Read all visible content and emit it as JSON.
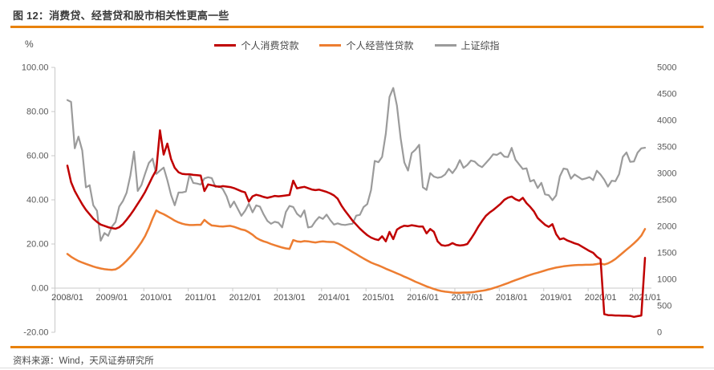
{
  "page": {
    "title": "图 12：消费贷、经营贷和股市相关性更高一些",
    "source": "资料来源：Wind，天风证券研究所"
  },
  "colors": {
    "accent_rule": "#e8820c",
    "consumer_loan": "#c00000",
    "business_loan": "#ed7d31",
    "sse_index": "#9b9b9b",
    "axis": "#c9c9c9"
  },
  "chart_data": {
    "type": "line",
    "title": "消费贷、经营贷和股市相关性更高一些",
    "unit_label": "%",
    "x_interval": "monthly",
    "x_start": "2008/01",
    "x_end": "2021/01",
    "x_tick_labels": [
      "2008/01",
      "2009/01",
      "2010/01",
      "2011/01",
      "2012/01",
      "2013/01",
      "2014/01",
      "2015/01",
      "2016/01",
      "2017/01",
      "2018/01",
      "2019/01",
      "2020/01",
      "2021/01"
    ],
    "left_axis": {
      "min": -20,
      "max": 100,
      "step": 20,
      "decimals": 2
    },
    "right_axis": {
      "min": 0,
      "max": 5000,
      "step": 500,
      "decimals": 0
    },
    "grid": false,
    "legend_position": "top",
    "series": [
      {
        "name": "个人消费贷款",
        "axis": "left",
        "color": "#c00000",
        "values": [
          55.5,
          48,
          44,
          41,
          38,
          35.5,
          33.5,
          31.5,
          30,
          28.8,
          28.2,
          27.6,
          27.2,
          26.9,
          27.6,
          29,
          31,
          33.2,
          35.6,
          38.2,
          40.8,
          43.6,
          47,
          50.5,
          53.5,
          71.5,
          60.5,
          65.5,
          58.5,
          54.5,
          52.5,
          51.8,
          51.6,
          51.6,
          51.3,
          51.2,
          51,
          44,
          47,
          46.6,
          46.2,
          45.9,
          46.2,
          46,
          45.8,
          45.3,
          44.6,
          43.9,
          43.4,
          39.2,
          41.6,
          42.3,
          41.9,
          41.3,
          40.9,
          41.3,
          41.8,
          41.6,
          41.8,
          42,
          42.2,
          48.7,
          45.2,
          45.6,
          45.9,
          45.3,
          44.7,
          44.4,
          44.6,
          44.1,
          43.6,
          42.9,
          42,
          40.5,
          37.5,
          35,
          32.8,
          30.6,
          28.8,
          27,
          25.4,
          24,
          22.9,
          22.2,
          21.8,
          23.5,
          21.2,
          25.5,
          22.2,
          26.5,
          27.6,
          28.3,
          28.1,
          28.5,
          28.2,
          27.9,
          27.9,
          24.8,
          26.8,
          25.5,
          21.2,
          19.5,
          19.2,
          19.5,
          20.4,
          19.6,
          19.3,
          19.5,
          20,
          22.4,
          25,
          27.9,
          30.4,
          32.7,
          34.2,
          35.4,
          36.8,
          38.2,
          40,
          41,
          41.5,
          40.3,
          39.6,
          40.9,
          38.5,
          36.8,
          34.8,
          31.8,
          30.2,
          28.7,
          27.8,
          29,
          24.5,
          22.1,
          22.6,
          21.6,
          21,
          20.3,
          19.8,
          18.8,
          17.8,
          16.8,
          16,
          14.2,
          13.1,
          -11.8,
          -12.2,
          -12.3,
          -12.4,
          -12.4,
          -12.5,
          -12.5,
          -12.6,
          -13,
          -12.7,
          -12.4,
          13.7
        ]
      },
      {
        "name": "个人经营性贷款",
        "axis": "left",
        "color": "#ed7d31",
        "values": [
          15.5,
          14.2,
          13.2,
          12.3,
          11.6,
          11,
          10.4,
          9.8,
          9.3,
          8.9,
          8.6,
          8.4,
          8.3,
          8.5,
          9.4,
          10.8,
          12.4,
          14.2,
          16.2,
          18.4,
          20.8,
          23.6,
          27.2,
          31.5,
          35.2,
          34.2,
          33.5,
          32.6,
          31.6,
          30.6,
          29.8,
          29.2,
          28.8,
          28.6,
          28.6,
          28.7,
          28.7,
          30.9,
          29.5,
          28.4,
          28.2,
          28,
          27.9,
          28.1,
          28.2,
          27.8,
          27.2,
          26.6,
          26.2,
          25.3,
          24.2,
          22.8,
          21.9,
          21.2,
          20.7,
          20,
          19.4,
          18.9,
          18.4,
          18,
          17.8,
          21.8,
          21.2,
          21,
          21.3,
          21.2,
          20.9,
          20.7,
          21,
          21.2,
          21,
          20.9,
          20.9,
          20.3,
          19.4,
          18.4,
          17.4,
          16.4,
          15.4,
          14.4,
          13.4,
          12.5,
          11.6,
          10.9,
          10.3,
          9.6,
          8.8,
          8.1,
          7.4,
          6.7,
          6,
          5.2,
          4.5,
          3.7,
          2.9,
          2.2,
          1.5,
          0.8,
          0.2,
          -0.4,
          -0.9,
          -1.3,
          -1.6,
          -1.8,
          -2,
          -2.1,
          -2.1,
          -2,
          -2,
          -1.9,
          -1.7,
          -1.4,
          -1.2,
          -0.9,
          -0.5,
          0,
          0.5,
          1.1,
          1.7,
          2.3,
          3,
          3.6,
          4.2,
          4.8,
          5.4,
          6,
          6.5,
          7,
          7.5,
          8,
          8.5,
          8.9,
          9.3,
          9.6,
          9.9,
          10.1,
          10.3,
          10.4,
          10.5,
          10.5,
          10.6,
          10.6,
          10.7,
          10.9,
          11.2,
          10.7,
          11.2,
          12.1,
          13.2,
          14.6,
          16,
          17.4,
          18.8,
          20.3,
          21.9,
          23.8,
          26.8
        ]
      },
      {
        "name": "上证综指",
        "axis": "right",
        "color": "#9b9b9b",
        "values": [
          4383,
          4349,
          3473,
          3694,
          3433,
          2736,
          2776,
          2397,
          2294,
          1729,
          1872,
          1821,
          1991,
          2082,
          2373,
          2478,
          2633,
          2959,
          3412,
          2668,
          2779,
          2995,
          3195,
          3277,
          2989,
          3052,
          3109,
          2871,
          2592,
          2398,
          2638,
          2639,
          2656,
          2979,
          2820,
          2808,
          2790,
          2905,
          2928,
          2911,
          2743,
          2762,
          2701,
          2567,
          2359,
          2468,
          2333,
          2199,
          2293,
          2428,
          2263,
          2396,
          2372,
          2225,
          2104,
          2048,
          2086,
          2068,
          1980,
          2269,
          2385,
          2365,
          2237,
          2177,
          2301,
          1979,
          1994,
          2098,
          2175,
          2141,
          2221,
          2116,
          2033,
          2056,
          2033,
          2026,
          2039,
          2048,
          2202,
          2217,
          2364,
          2420,
          2683,
          3235,
          3210,
          3310,
          3748,
          4442,
          4612,
          4277,
          3664,
          3206,
          3053,
          3383,
          3445,
          3539,
          2738,
          2688,
          3004,
          2938,
          2917,
          2930,
          2979,
          3085,
          3005,
          3100,
          3250,
          3104,
          3159,
          3242,
          3223,
          3155,
          3117,
          3192,
          3273,
          3361,
          3349,
          3393,
          3317,
          3307,
          3481,
          3259,
          3169,
          3082,
          3095,
          2847,
          2876,
          2725,
          2821,
          2603,
          2588,
          2494,
          2585,
          2941,
          3091,
          3078,
          2899,
          2979,
          2933,
          2886,
          2905,
          2929,
          2872,
          3050,
          2977,
          2880,
          2750,
          2860,
          2852,
          2985,
          3310,
          3396,
          3218,
          3225,
          3392,
          3473,
          3483
        ]
      }
    ]
  }
}
